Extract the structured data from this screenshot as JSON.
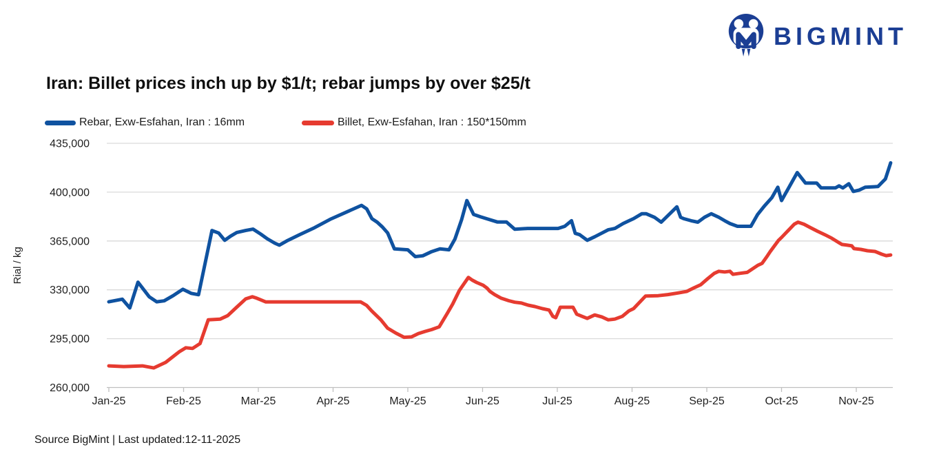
{
  "brand": {
    "name": "BIGMINT",
    "color": "#1b3e94"
  },
  "title": "Iran: Billet prices inch up by $1/t; rebar jumps by over $25/t",
  "source_note": "Source BigMint | Last updated:12-11-2025",
  "chart_data": {
    "type": "line",
    "title": "Iran: Billet prices inch up by $1/t; rebar jumps by over $25/t",
    "xlabel": "",
    "ylabel": "Rial / kg",
    "ylim": [
      260000,
      435000
    ],
    "grid": "horizontal",
    "legend_position": "top-left",
    "y_tick_values": [
      435000,
      400000,
      365000,
      330000,
      295000,
      260000
    ],
    "y_ticks": [
      "435,000",
      "400,000",
      "365,000",
      "330,000",
      "295,000",
      "260,000"
    ],
    "x_tick_labels": [
      "Jan-25",
      "Feb-25",
      "Mar-25",
      "Apr-25",
      "May-25",
      "Jun-25",
      "Jul-25",
      "Aug-25",
      "Sep-25",
      "Oct-25",
      "Nov-25"
    ],
    "x_unit": "months since Jan-2025",
    "series": [
      {
        "name": "Rebar, Exw-Esfahan, Iran : 16mm",
        "color": "#0f52a0",
        "points": [
          [
            0,
            321400
          ],
          [
            0.18,
            323300
          ],
          [
            0.28,
            317000
          ],
          [
            0.39,
            335500
          ],
          [
            0.54,
            325000
          ],
          [
            0.64,
            321400
          ],
          [
            0.74,
            322100
          ],
          [
            0.86,
            325800
          ],
          [
            0.99,
            330400
          ],
          [
            1.1,
            327500
          ],
          [
            1.2,
            326500
          ],
          [
            1.38,
            372500
          ],
          [
            1.47,
            370700
          ],
          [
            1.55,
            365500
          ],
          [
            1.63,
            368500
          ],
          [
            1.71,
            371000
          ],
          [
            1.83,
            372500
          ],
          [
            1.93,
            373500
          ],
          [
            2.03,
            370000
          ],
          [
            2.12,
            366600
          ],
          [
            2.22,
            363400
          ],
          [
            2.28,
            362000
          ],
          [
            2.38,
            365000
          ],
          [
            2.55,
            369500
          ],
          [
            2.75,
            374500
          ],
          [
            2.96,
            380500
          ],
          [
            3.19,
            386000
          ],
          [
            3.38,
            390500
          ],
          [
            3.45,
            388000
          ],
          [
            3.52,
            381000
          ],
          [
            3.59,
            378500
          ],
          [
            3.66,
            375000
          ],
          [
            3.73,
            370800
          ],
          [
            3.82,
            359300
          ],
          [
            4,
            358700
          ],
          [
            4.1,
            353800
          ],
          [
            4.2,
            354400
          ],
          [
            4.32,
            357400
          ],
          [
            4.43,
            359300
          ],
          [
            4.55,
            358700
          ],
          [
            4.63,
            366400
          ],
          [
            4.72,
            380300
          ],
          [
            4.79,
            394000
          ],
          [
            4.88,
            384000
          ],
          [
            4.97,
            382400
          ],
          [
            5.07,
            380700
          ],
          [
            5.2,
            378600
          ],
          [
            5.32,
            378600
          ],
          [
            5.43,
            373400
          ],
          [
            5.6,
            374000
          ],
          [
            6.01,
            374000
          ],
          [
            6.1,
            375500
          ],
          [
            6.19,
            379500
          ],
          [
            6.24,
            370500
          ],
          [
            6.3,
            369500
          ],
          [
            6.4,
            365500
          ],
          [
            6.5,
            368000
          ],
          [
            6.59,
            370500
          ],
          [
            6.68,
            373000
          ],
          [
            6.77,
            374000
          ],
          [
            6.88,
            377500
          ],
          [
            6.96,
            379500
          ],
          [
            7.02,
            381000
          ],
          [
            7.13,
            384500
          ],
          [
            7.19,
            384500
          ],
          [
            7.3,
            382000
          ],
          [
            7.39,
            378500
          ],
          [
            7.6,
            389500
          ],
          [
            7.65,
            382000
          ],
          [
            7.69,
            381000
          ],
          [
            7.79,
            379500
          ],
          [
            7.88,
            378500
          ],
          [
            7.97,
            382000
          ],
          [
            8.06,
            384500
          ],
          [
            8.16,
            382000
          ],
          [
            8.24,
            379500
          ],
          [
            8.31,
            377500
          ],
          [
            8.41,
            375500
          ],
          [
            8.59,
            375500
          ],
          [
            8.68,
            384000
          ],
          [
            8.77,
            390000
          ],
          [
            8.87,
            396000
          ],
          [
            8.95,
            403500
          ],
          [
            9,
            394000
          ],
          [
            9.21,
            414000
          ],
          [
            9.32,
            406500
          ],
          [
            9.47,
            406500
          ],
          [
            9.53,
            403000
          ],
          [
            9.72,
            403000
          ],
          [
            9.77,
            404500
          ],
          [
            9.82,
            403000
          ],
          [
            9.9,
            406000
          ],
          [
            9.96,
            400500
          ],
          [
            10.04,
            401500
          ],
          [
            10.12,
            403500
          ],
          [
            10.29,
            404000
          ],
          [
            10.39,
            409500
          ],
          [
            10.46,
            421000
          ]
        ]
      },
      {
        "name": "Billet, Exw-Esfahan, Iran : 150*150mm",
        "color": "#e63b30",
        "points": [
          [
            0,
            275500
          ],
          [
            0.2,
            275000
          ],
          [
            0.45,
            275500
          ],
          [
            0.6,
            274000
          ],
          [
            0.76,
            278000
          ],
          [
            0.94,
            285500
          ],
          [
            1.03,
            288500
          ],
          [
            1.12,
            288000
          ],
          [
            1.22,
            291500
          ],
          [
            1.33,
            308500
          ],
          [
            1.49,
            309000
          ],
          [
            1.59,
            311500
          ],
          [
            1.71,
            317500
          ],
          [
            1.83,
            323500
          ],
          [
            1.92,
            325000
          ],
          [
            1.98,
            324000
          ],
          [
            2.1,
            321300
          ],
          [
            2.6,
            321300
          ],
          [
            3.1,
            321300
          ],
          [
            3.37,
            321300
          ],
          [
            3.45,
            318800
          ],
          [
            3.52,
            314700
          ],
          [
            3.64,
            308500
          ],
          [
            3.73,
            302500
          ],
          [
            3.84,
            299000
          ],
          [
            3.95,
            296000
          ],
          [
            4.05,
            296300
          ],
          [
            4.14,
            298600
          ],
          [
            4.23,
            300200
          ],
          [
            4.32,
            301500
          ],
          [
            4.42,
            303500
          ],
          [
            4.53,
            313300
          ],
          [
            4.6,
            319800
          ],
          [
            4.69,
            329600
          ],
          [
            4.81,
            338900
          ],
          [
            4.86,
            337000
          ],
          [
            4.92,
            335300
          ],
          [
            5.01,
            333200
          ],
          [
            5.06,
            331200
          ],
          [
            5.1,
            328800
          ],
          [
            5.16,
            326600
          ],
          [
            5.25,
            324000
          ],
          [
            5.35,
            322200
          ],
          [
            5.43,
            321100
          ],
          [
            5.52,
            320500
          ],
          [
            5.61,
            319000
          ],
          [
            5.7,
            318000
          ],
          [
            5.8,
            316500
          ],
          [
            5.89,
            315500
          ],
          [
            5.94,
            311000
          ],
          [
            5.98,
            310000
          ],
          [
            6.04,
            317500
          ],
          [
            6.21,
            317500
          ],
          [
            6.26,
            312500
          ],
          [
            6.33,
            311000
          ],
          [
            6.4,
            309500
          ],
          [
            6.5,
            312000
          ],
          [
            6.6,
            310500
          ],
          [
            6.68,
            308500
          ],
          [
            6.77,
            309000
          ],
          [
            6.87,
            311000
          ],
          [
            6.96,
            315000
          ],
          [
            7.02,
            316500
          ],
          [
            7.18,
            325500
          ],
          [
            7.35,
            325800
          ],
          [
            7.48,
            326600
          ],
          [
            7.62,
            327800
          ],
          [
            7.73,
            328800
          ],
          [
            7.82,
            331200
          ],
          [
            7.92,
            333700
          ],
          [
            8.01,
            337900
          ],
          [
            8.1,
            341800
          ],
          [
            8.16,
            343300
          ],
          [
            8.24,
            342800
          ],
          [
            8.31,
            343300
          ],
          [
            8.35,
            341100
          ],
          [
            8.44,
            341800
          ],
          [
            8.54,
            342500
          ],
          [
            8.68,
            347500
          ],
          [
            8.74,
            349000
          ],
          [
            8.8,
            353500
          ],
          [
            8.85,
            357500
          ],
          [
            8.96,
            365500
          ],
          [
            9,
            367500
          ],
          [
            9.08,
            372000
          ],
          [
            9.17,
            377000
          ],
          [
            9.22,
            378500
          ],
          [
            9.3,
            377000
          ],
          [
            9.39,
            374500
          ],
          [
            9.48,
            372000
          ],
          [
            9.58,
            369500
          ],
          [
            9.67,
            367000
          ],
          [
            9.76,
            364000
          ],
          [
            9.81,
            362500
          ],
          [
            9.88,
            362000
          ],
          [
            9.94,
            361500
          ],
          [
            9.97,
            359500
          ],
          [
            10.06,
            359000
          ],
          [
            10.15,
            358000
          ],
          [
            10.25,
            357500
          ],
          [
            10.34,
            355500
          ],
          [
            10.4,
            354500
          ],
          [
            10.46,
            355000
          ]
        ]
      }
    ]
  }
}
